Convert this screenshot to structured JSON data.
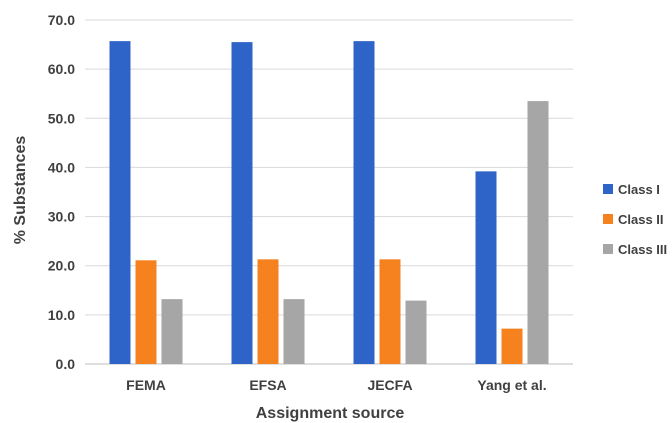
{
  "chart_data": {
    "type": "bar",
    "title": "",
    "xlabel": "Assignment source",
    "ylabel": "% Substances",
    "ylim": [
      0,
      70
    ],
    "ytick_step": 10,
    "ytick_labels": [
      "0.0",
      "10.0",
      "20.0",
      "30.0",
      "40.0",
      "50.0",
      "60.0",
      "70.0"
    ],
    "grid": true,
    "legend_position": "right",
    "categories": [
      "FEMA",
      "EFSA",
      "JECFA",
      "Yang et al."
    ],
    "series": [
      {
        "name": "Class I",
        "color": "#2e64c8",
        "values": [
          65.7,
          65.5,
          65.7,
          39.2
        ]
      },
      {
        "name": "Class II",
        "color": "#f5821f",
        "values": [
          21.1,
          21.3,
          21.3,
          7.2
        ]
      },
      {
        "name": "Class III",
        "color": "#a6a6a6",
        "values": [
          13.2,
          13.2,
          12.9,
          53.5
        ]
      }
    ]
  }
}
